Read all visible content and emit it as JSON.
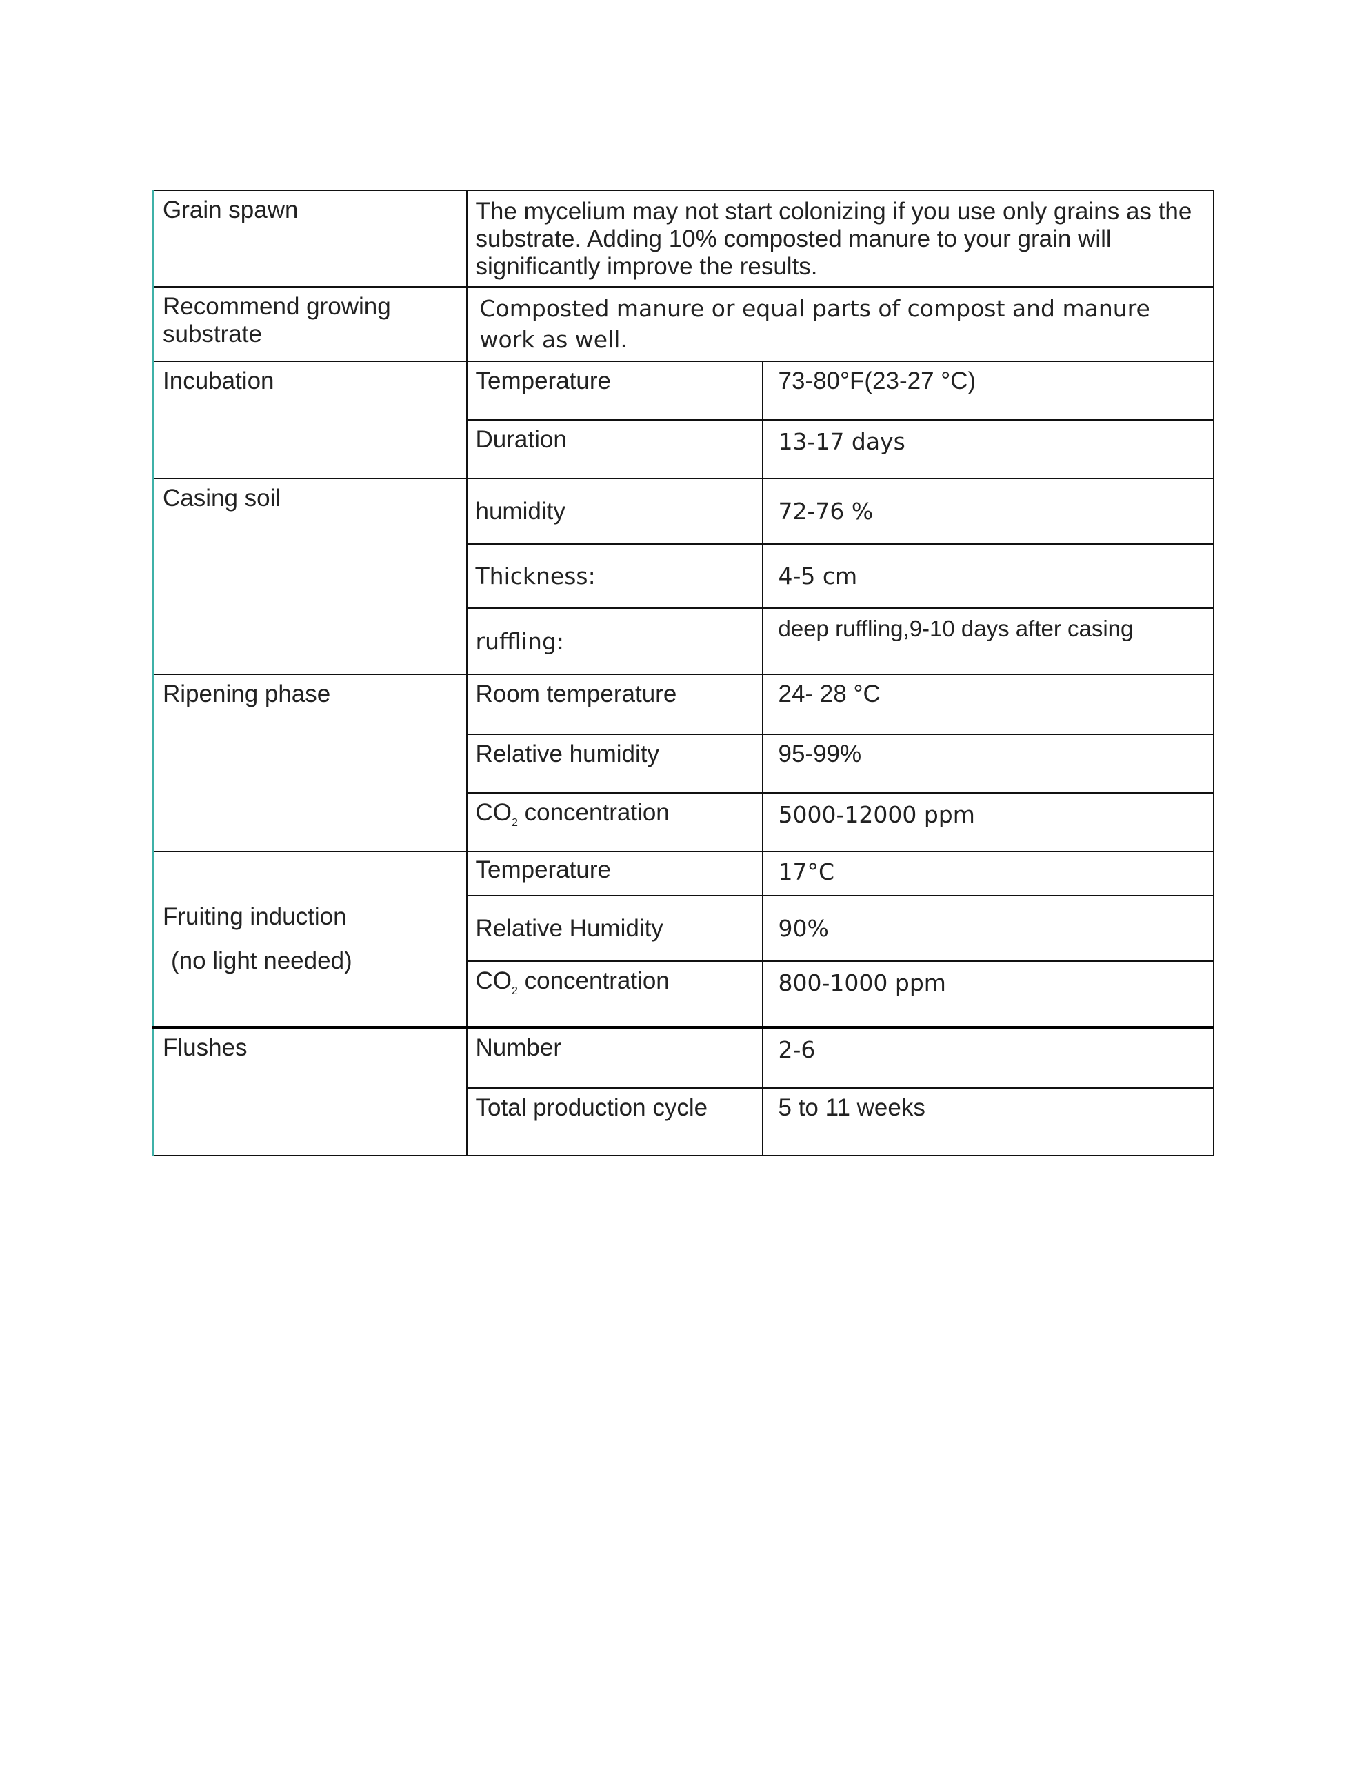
{
  "rows": {
    "grain_spawn": {
      "label": "Grain spawn",
      "text": "The mycelium may not start colonizing if you use only grains as the substrate. Adding 10% composted manure to your grain will significantly improve the results."
    },
    "substrate": {
      "label": "Recommend growing substrate",
      "text": "Composted manure or equal parts of compost and manure work as well."
    },
    "incubation": {
      "label": "Incubation",
      "params": [
        {
          "name": "Temperature",
          "value": "73-80°F(23-27 °C)"
        },
        {
          "name": "Duration",
          "value": "13-17 days"
        }
      ]
    },
    "casing": {
      "label": "Casing soil",
      "params": [
        {
          "name": "humidity",
          "value": "72-76 %"
        },
        {
          "name": "Thickness:",
          "value": "4-5 cm"
        },
        {
          "name": "ruffling:",
          "value": "deep ruffling,9-10 days after casing"
        }
      ]
    },
    "ripening": {
      "label": "Ripening  phase",
      "params": [
        {
          "name": "Room temperature",
          "value": "24- 28 °C"
        },
        {
          "name": "Relative humidity",
          "value": "95-99%"
        },
        {
          "name_prefix": "CO",
          "name_sub": "2",
          "name_suffix": " concentration",
          "value": "5000-12000 ppm"
        }
      ]
    },
    "fruiting": {
      "label": "Fruiting induction",
      "sublabel": "(no light needed)",
      "params": [
        {
          "name": "Temperature",
          "value": "17°C"
        },
        {
          "name": "Relative Humidity",
          "value": "90%"
        },
        {
          "name_prefix": "CO",
          "name_sub": "2",
          "name_suffix": " concentration",
          "value": "800-1000 ppm"
        }
      ]
    },
    "flushes": {
      "label": "Flushes",
      "params": [
        {
          "name": "Number",
          "value": "2-6"
        },
        {
          "name": "Total production cycle",
          "value": "5 to 11 weeks"
        }
      ]
    }
  },
  "colors": {
    "left_border": "#3fb1a8"
  }
}
